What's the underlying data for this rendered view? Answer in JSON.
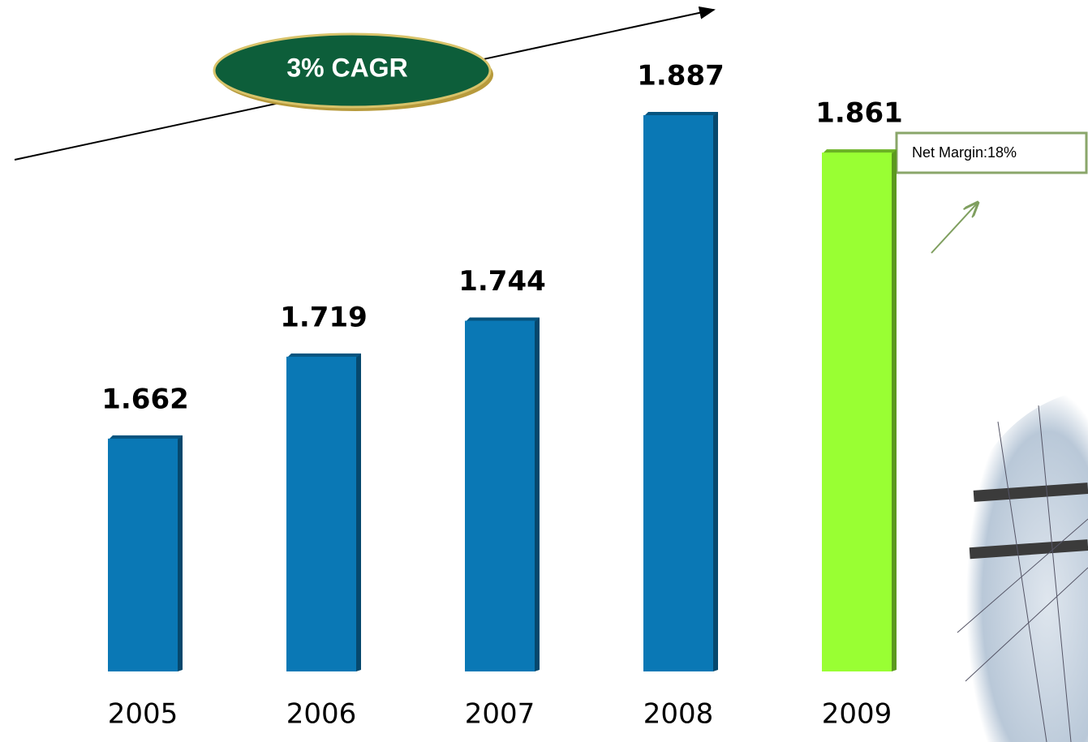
{
  "chart_data": {
    "type": "bar",
    "categories": [
      "2005",
      "2006",
      "2007",
      "2008",
      "2009"
    ],
    "values": [
      1.662,
      1.719,
      1.744,
      1.887,
      1.861
    ],
    "colors": [
      "#0a78b5",
      "#0a78b5",
      "#0a78b5",
      "#0a78b5",
      "#99ff33"
    ],
    "ylim": [
      1.5,
      1.9
    ],
    "annotations": [
      "3% CAGR",
      "Net Margin:18%"
    ]
  }
}
